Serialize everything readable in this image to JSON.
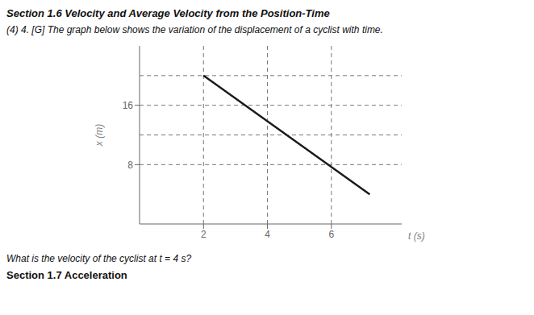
{
  "chart_data": {
    "type": "line",
    "title": "Section 1.6 Velocity and Average Velocity from the Position-Time",
    "subtitle": "(4) 4. [G] The graph below shows the variation of the displacement of a cyclist with time.",
    "annotations": [
      "What is the velocity of the cyclist at t = 4 s?",
      "Section 1.7 Acceleration"
    ],
    "x": [
      2.0,
      7.2
    ],
    "values": [
      20,
      4
    ],
    "xlim": [
      0,
      8.2
    ],
    "ylim": [
      0,
      24
    ],
    "xticks": [
      2,
      4,
      6
    ],
    "yticks": [
      8,
      16
    ],
    "xlabel": "t (s)",
    "ylabel": "x (m)",
    "color": "#1a1a1a",
    "reference_x": [
      2,
      4,
      6
    ],
    "reference_y": [
      8,
      12,
      16,
      20
    ],
    "grid": false
  }
}
